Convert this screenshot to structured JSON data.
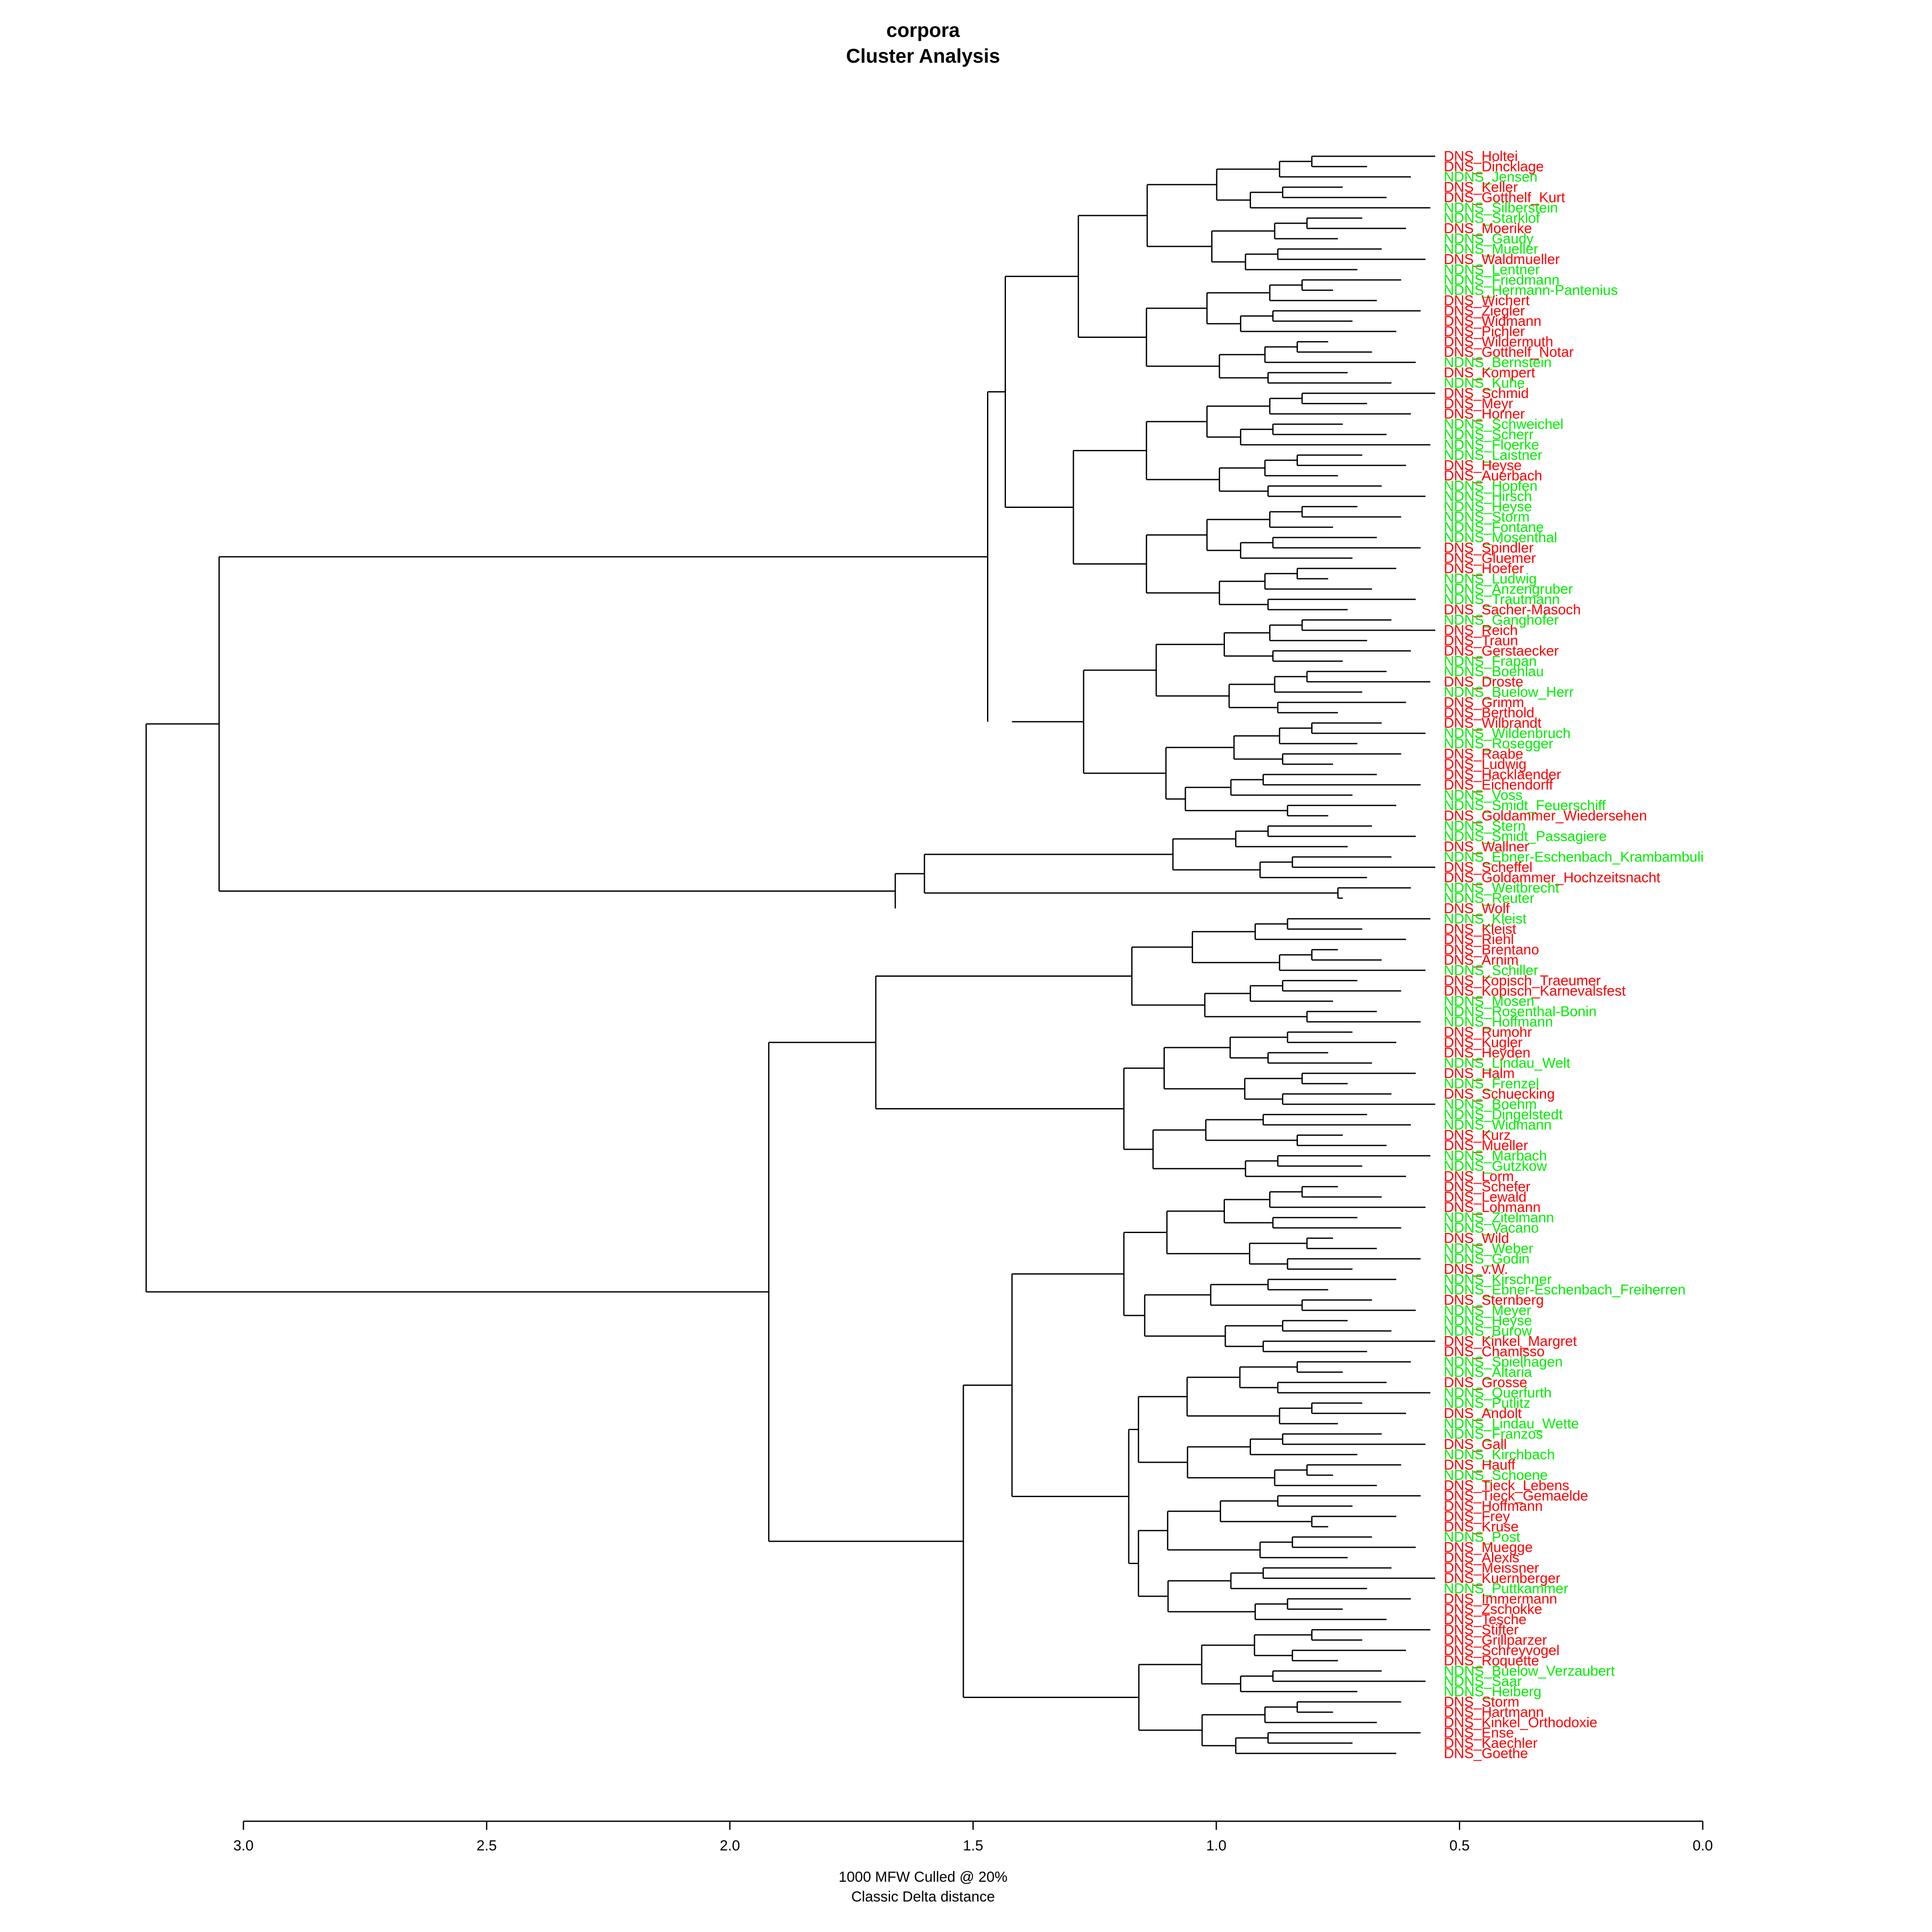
{
  "title": "corpora",
  "subtitle": "Cluster Analysis",
  "footnote": [
    "1000 MFW  Culled @ 20%",
    "Classic Delta distance"
  ],
  "colors": {
    "DNS": "#ff0000",
    "NDNS": "#00ee00",
    "lines": "#000000"
  },
  "chart_data": {
    "type": "dendrogram",
    "orientation": "leaves-right",
    "x_axis": {
      "ticks": [
        "3.0",
        "2.5",
        "2.0",
        "1.5",
        "1.0",
        "0.5",
        "0.0"
      ],
      "range": [
        3.05,
        0.0
      ],
      "label": [
        "1000 MFW  Culled @ 20%",
        "Classic Delta distance"
      ]
    },
    "leaves": [
      "DNS_Holtei",
      "DNS_Dincklage",
      "NDNS_Jensen",
      "DNS_Keller",
      "DNS_Gotthelf_Kurt",
      "NDNS_Silberstein",
      "NDNS_Starklof",
      "DNS_Moerike",
      "NDNS_Gaudy",
      "NDNS_Mueller",
      "DNS_Waldmueller",
      "NDNS_Lentner",
      "NDNS_Friedmann",
      "NDNS_Hermann-Pantenius",
      "DNS_Wichert",
      "DNS_Ziegler",
      "DNS_Widmann",
      "DNS_Pichler",
      "DNS_Wildermuth",
      "DNS_Gotthelf_Notar",
      "NDNS_Bernstein",
      "DNS_Kompert",
      "NDNS_Kuhe",
      "DNS_Schmid",
      "DNS_Meyr",
      "DNS_Horner",
      "NDNS_Schweichel",
      "NDNS_Scherr",
      "NDNS_Floerke",
      "NDNS_Laistner",
      "DNS_Heyse",
      "DNS_Auerbach",
      "NDNS_Hopfen",
      "NDNS_Hirsch",
      "NDNS_Heyse",
      "NDNS_Storm",
      "NDNS_Fontane",
      "NDNS_Mosenthal",
      "DNS_Spindler",
      "DNS_Gluemer",
      "DNS_Hoefer",
      "NDNS_Ludwig",
      "NDNS_Anzengruber",
      "NDNS_Trautmann",
      "DNS_Sacher-Masoch",
      "NDNS_Ganghofer",
      "DNS_Reich",
      "DNS_Traun",
      "DNS_Gerstaecker",
      "NDNS_Frapan",
      "NDNS_Boehlau",
      "DNS_Droste",
      "NDNS_Buelow_Herr",
      "DNS_Grimm",
      "DNS_Berthold",
      "DNS_Wilbrandt",
      "NDNS_Wildenbruch",
      "NDNS_Rosegger",
      "DNS_Raabe",
      "DNS_Ludwig",
      "DNS_Hacklaender",
      "DNS_Eichendorff",
      "NDNS_Voss",
      "NDNS_Smidt_Feuerschiff",
      "DNS_Goldammer_Wiedersehen",
      "NDNS_Stern",
      "NDNS_Smidt_Passagiere",
      "DNS_Wallner",
      "NDNS_Ebner-Eschenbach_Krambambuli",
      "DNS_Scheffel",
      "DNS_Goldammer_Hochzeitsnacht",
      "NDNS_Weitbrecht",
      "NDNS_Reuter",
      "DNS_Wolf",
      "NDNS_Kleist",
      "DNS_Kleist",
      "DNS_Riehl",
      "DNS_Brentano",
      "DNS_Arnim",
      "NDNS_Schiller",
      "DNS_Kopisch_Traeumer",
      "DNS_Kopisch_Karnevalsfest",
      "NDNS_Mosen",
      "NDNS_Rosenthal-Bonin",
      "NDNS_Hoffmann",
      "DNS_Rumohr",
      "DNS_Kugler",
      "DNS_Heyden",
      "NDNS_Lindau_Welt",
      "DNS_Halm",
      "NDNS_Frenzel",
      "DNS_Schuecking",
      "NDNS_Boehm",
      "NDNS_Dingelstedt",
      "NDNS_Widmann",
      "DNS_Kurz",
      "DNS_Mueller",
      "NDNS_Marbach",
      "NDNS_Gutzkow",
      "DNS_Lorm",
      "DNS_Schefer",
      "DNS_Lewald",
      "DNS_Lohmann",
      "NDNS_Zitelmann",
      "NDNS_Vacano",
      "DNS_Wild",
      "NDNS_Weber",
      "NDNS_Godin",
      "DNS_v.W.",
      "NDNS_Kirschner",
      "NDNS_Ebner-Eschenbach_Freiherren",
      "DNS_Sternberg",
      "NDNS_Meyer",
      "NDNS_Heyse",
      "NDNS_Burow",
      "DNS_Kinkel_Margret",
      "DNS_Chamisso",
      "NDNS_Spielhagen",
      "NDNS_Altaria",
      "DNS_Grosse",
      "NDNS_Querfurth",
      "NDNS_Putlitz",
      "DNS_Andolt",
      "NDNS_Lindau_Wette",
      "NDNS_Franzos",
      "DNS_Gall",
      "NDNS_Kirchbach",
      "DNS_Hauff",
      "NDNS_Schoene",
      "DNS_Tieck_Lebens",
      "DNS_Tieck_Gemaelde",
      "DNS_Hoffmann",
      "DNS_Frey",
      "DNS_Kruse",
      "NDNS_Post",
      "DNS_Muegge",
      "DNS_Alexis",
      "DNS_Meissner",
      "DNS_Kuernberger",
      "NDNS_Puttkammer",
      "DNS_Immermann",
      "DNS_Zschokke",
      "DNS_Tesche",
      "DNS_Stifter",
      "DNS_Grillparzer",
      "DNS_Schreyvogel",
      "DNS_Roquette",
      "NDNS_Buelow_Verzaubert",
      "NDNS_Saar",
      "NDNS_Heiberg",
      "DNS_Storm",
      "DNS_Hartmann",
      "DNS_Kinkel_Orthodoxie",
      "DNS_Ense",
      "DNS_Kaechler",
      "DNS_Goethe"
    ]
  }
}
